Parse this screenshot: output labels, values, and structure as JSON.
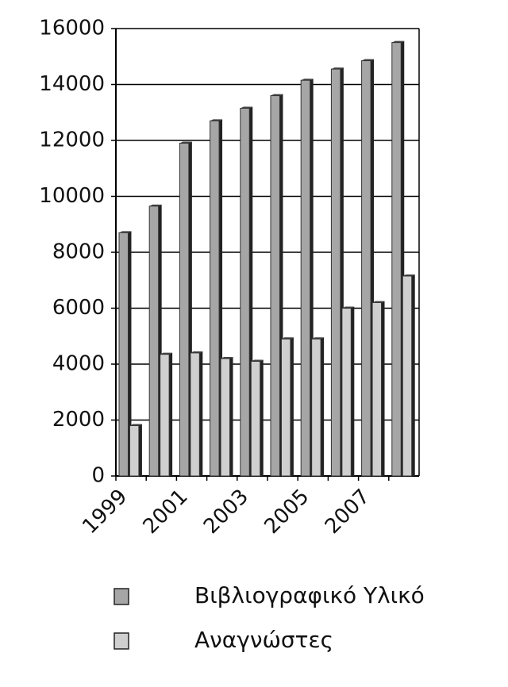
{
  "chart_data": {
    "type": "bar",
    "categories": [
      "1999",
      null,
      "2001",
      null,
      "2003",
      null,
      "2005",
      null,
      "2007",
      null
    ],
    "series": [
      {
        "name": "Βιβλιογραφικό Υλικό",
        "color": "#a6a6a6",
        "values": [
          8700,
          9650,
          11900,
          12700,
          13150,
          13600,
          14150,
          14550,
          14850,
          15500
        ]
      },
      {
        "name": "Αναγνώστες",
        "color": "#cfcfcf",
        "values": [
          1800,
          4350,
          4400,
          4200,
          4100,
          4900,
          4900,
          6000,
          6200,
          7150
        ]
      }
    ],
    "ylim": [
      0,
      16000
    ],
    "yticks": [
      0,
      2000,
      4000,
      6000,
      8000,
      10000,
      12000,
      14000,
      16000
    ],
    "grid": true
  }
}
